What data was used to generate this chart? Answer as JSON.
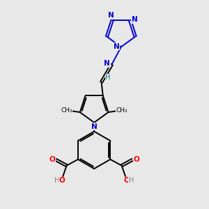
{
  "bg_color": "#e8e8e8",
  "bond_color": "#000000",
  "n_color": "#0000cc",
  "o_color": "#ff0000",
  "oh_color": "#808080",
  "h_color": "#008080",
  "text_color": "#000000",
  "figsize": [
    3.0,
    3.0
  ],
  "dpi": 100,
  "xlim": [
    0,
    10
  ],
  "ylim": [
    0,
    10
  ]
}
